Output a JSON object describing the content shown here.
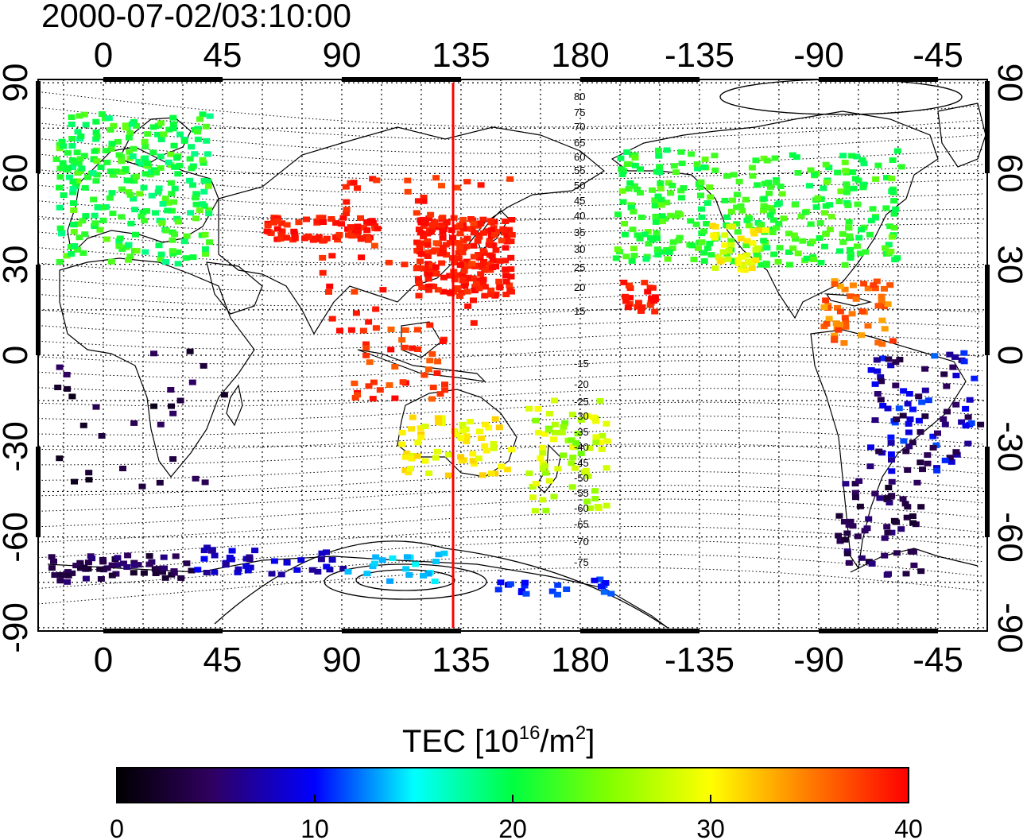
{
  "title": "2000-07-02/03:10:00",
  "map": {
    "lon_ticks_top": [
      "0",
      "45",
      "90",
      "135",
      "180",
      "-135",
      "-90",
      "-45"
    ],
    "lon_ticks_bottom": [
      "0",
      "45",
      "90",
      "135",
      "180",
      "-135",
      "-90",
      "-45"
    ],
    "lat_ticks_left": [
      "90",
      "60",
      "30",
      "0",
      "-30",
      "-60",
      "-90"
    ],
    "lat_ticks_right": [
      "90",
      "60",
      "30",
      "0",
      "-30",
      "-60",
      "-90"
    ],
    "contour_labels": [
      "80",
      "75",
      "70",
      "65",
      "60",
      "55",
      "50",
      "45",
      "40",
      "35",
      "30",
      "25",
      "20",
      "15",
      "-15",
      "-20",
      "-25",
      "-30",
      "-35",
      "-40",
      "-45",
      "-50",
      "-55",
      "-60",
      "-65",
      "-70",
      "-75"
    ],
    "red_meridian_lon": 132,
    "grid": "dotted, 15 degree spacing",
    "coastlines": true
  },
  "colorbar": {
    "label": "TEC  [10¹⁶/m²]",
    "label_main": "TEC  [10",
    "label_exp": "16",
    "label_mid": "/m",
    "label_sq": "2",
    "label_end": "]",
    "ticks": [
      "0",
      "10",
      "20",
      "30",
      "40"
    ],
    "min": 0,
    "max": 40,
    "colormap": [
      "#000000",
      "#400080",
      "#0000ff",
      "#00ffff",
      "#00ff00",
      "#ffff00",
      "#ff8000",
      "#ff0000"
    ]
  },
  "colors": {
    "meridian": "#ff0000",
    "grid": "#000000",
    "coast": "#000000"
  }
}
